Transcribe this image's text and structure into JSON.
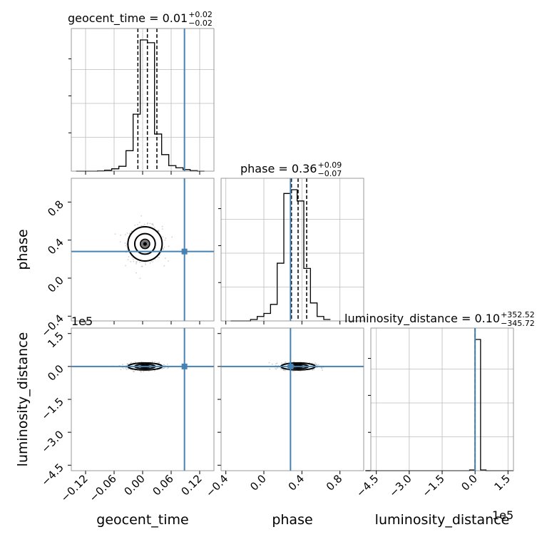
{
  "chart_data": {
    "type": "corner",
    "parameters": [
      "geocent_time",
      "phase",
      "luminosity_distance"
    ],
    "axes_labels": {
      "geocent_time": "geocent_time",
      "phase": "phase",
      "luminosity_distance": "luminosity_distance"
    },
    "titles": [
      {
        "param": "geocent_time",
        "text": "geocent_time = 0.01",
        "plus": "+0.02",
        "minus": "−0.02"
      },
      {
        "param": "phase",
        "text": "phase = 0.36",
        "plus": "+0.09",
        "minus": "−0.07"
      },
      {
        "param": "luminosity_distance",
        "text": "luminosity_distance = 0.10",
        "plus": "+352.52",
        "minus": "−345.72"
      }
    ],
    "ranges": {
      "geocent_time": [
        -0.15,
        0.15
      ],
      "phase": [
        -0.45,
        1.05
      ],
      "luminosity_distance": [
        -475000,
        175000
      ]
    },
    "ticks": {
      "geocent_time": {
        "values": [
          -0.12,
          -0.06,
          0.0,
          0.06,
          0.12
        ],
        "labels": [
          "−0.12",
          "−0.06",
          "0.00",
          "0.06",
          "0.12"
        ]
      },
      "phase": {
        "values": [
          -0.4,
          0.0,
          0.4,
          0.8
        ],
        "labels": [
          "−0.4",
          "0.0",
          "0.4",
          "0.8"
        ]
      },
      "luminosity_distance": {
        "values": [
          -450000,
          -300000,
          -150000,
          0,
          150000
        ],
        "labels": [
          "−4.5",
          "−3.0",
          "−1.5",
          "0.0",
          "1.5"
        ]
      }
    },
    "offset_text": {
      "luminosity_distance": "1e5"
    },
    "truths": {
      "geocent_time": 0.088,
      "phase": 0.28,
      "luminosity_distance": 0.0
    },
    "quantiles": {
      "geocent_time": [
        -0.01,
        0.01,
        0.03
      ],
      "phase": [
        0.29,
        0.36,
        0.45
      ],
      "luminosity_distance": [
        -345.62,
        0.1,
        352.62
      ]
    },
    "histograms": {
      "geocent_time": {
        "edges": [
          -0.14,
          -0.125,
          -0.11,
          -0.095,
          -0.08,
          -0.065,
          -0.05,
          -0.035,
          -0.02,
          -0.005,
          0.01,
          0.025,
          0.04,
          0.055,
          0.07,
          0.085,
          0.1,
          0.115,
          0.13
        ],
        "counts": [
          0.0,
          0.0,
          0.0,
          0.002,
          0.007,
          0.018,
          0.037,
          0.156,
          0.434,
          1.0,
          0.979,
          0.283,
          0.126,
          0.042,
          0.026,
          0.012,
          0.004,
          0.0
        ]
      },
      "phase": {
        "edges": [
          -0.35,
          -0.28,
          -0.21,
          -0.14,
          -0.07,
          0.0,
          0.07,
          0.14,
          0.21,
          0.28,
          0.35,
          0.42,
          0.49,
          0.56,
          0.63,
          0.7
        ],
        "counts": [
          0.0,
          0.0,
          0.0,
          0.011,
          0.034,
          0.057,
          0.126,
          0.44,
          0.971,
          1.0,
          0.914,
          0.4,
          0.137,
          0.034,
          0.011
        ]
      },
      "luminosity_distance": {
        "edges": [
          -500000,
          -50000,
          -25000,
          0,
          25000,
          50000,
          175000
        ],
        "counts": [
          0.0,
          0.0,
          0.005,
          1.0,
          0.005,
          0.0
        ]
      }
    },
    "grid": true,
    "colors": {
      "truth": "#4682b4",
      "hist": "#000000",
      "scatter": "#9a9a9a",
      "grid": "#bdbdbd",
      "density": "#7a7a7a"
    }
  }
}
